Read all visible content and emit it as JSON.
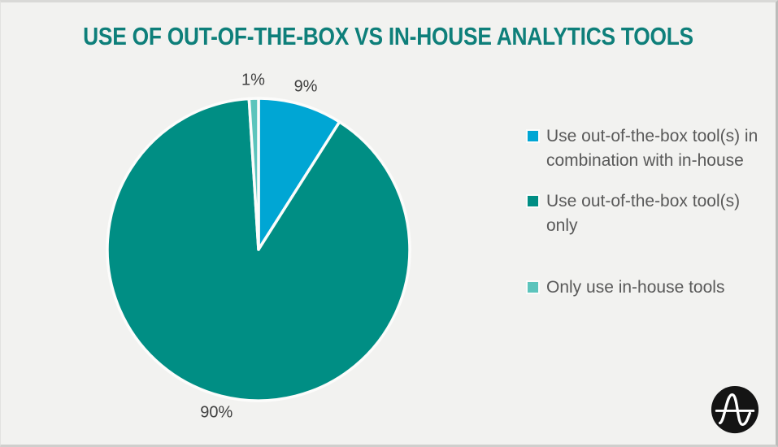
{
  "chart_data": {
    "type": "pie",
    "title": "USE OF OUT-OF-THE-BOX VS IN-HOUSE ANALYTICS TOOLS",
    "units": "percent",
    "direction": "clockwise",
    "start_angle_deg": 0,
    "legend_position": "right",
    "slice_border_color": "#fcfcfb",
    "slices": [
      {
        "label": "Use out-of-the-box tool(s) in combination with in-house",
        "value": 9,
        "pct_label": "9%",
        "color": "#00a6d4"
      },
      {
        "label": "Use out-of-the-box tool(s) only",
        "value": 90,
        "pct_label": "90%",
        "color": "#008e84"
      },
      {
        "label": "Only use in-house tools",
        "value": 1,
        "pct_label": "1%",
        "color": "#5cc4bc"
      }
    ]
  },
  "styles": {
    "background": "#f2f2f0",
    "title_color": "#0e7f7a",
    "label_text_color": "#3f3f3f",
    "legend_text_color": "#595959"
  },
  "logo": {
    "name": "amplitude-logo",
    "circle_color": "#141414",
    "glyph_color": "#ffffff"
  }
}
